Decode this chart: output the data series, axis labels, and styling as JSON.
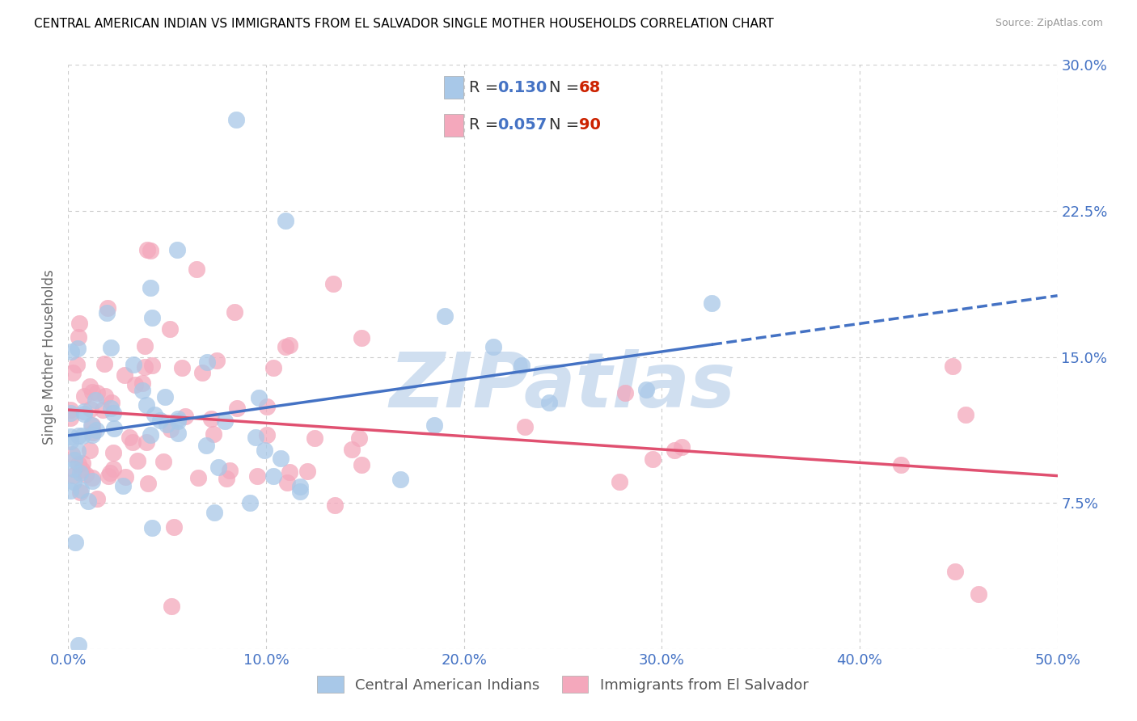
{
  "title": "CENTRAL AMERICAN INDIAN VS IMMIGRANTS FROM EL SALVADOR SINGLE MOTHER HOUSEHOLDS CORRELATION CHART",
  "source": "Source: ZipAtlas.com",
  "ylabel": "Single Mother Households",
  "xlim": [
    0.0,
    0.5
  ],
  "ylim": [
    0.0,
    0.3
  ],
  "yticks": [
    0.0,
    0.075,
    0.15,
    0.225,
    0.3
  ],
  "ytick_labels": [
    "",
    "7.5%",
    "15.0%",
    "22.5%",
    "30.0%"
  ],
  "xticks": [
    0.0,
    0.1,
    0.2,
    0.3,
    0.4,
    0.5
  ],
  "xtick_labels": [
    "0.0%",
    "10.0%",
    "20.0%",
    "30.0%",
    "40.0%",
    "50.0%"
  ],
  "blue_color": "#A8C8E8",
  "pink_color": "#F4A8BC",
  "blue_line_color": "#4472C4",
  "pink_line_color": "#E05070",
  "series": [
    {
      "label": "Central American Indians",
      "R": 0.13,
      "N": 68
    },
    {
      "label": "Immigrants from El Salvador",
      "R": 0.057,
      "N": 90
    }
  ],
  "watermark": "ZIPatlas",
  "watermark_color": "#D0DFF0",
  "background_color": "#FFFFFF",
  "grid_color": "#CCCCCC",
  "tick_color": "#4472C4",
  "title_color": "#000000",
  "title_fontsize": 11,
  "axis_label_color": "#666666",
  "legend_R_color": "#4472C4",
  "legend_N_color": "#CC2200"
}
